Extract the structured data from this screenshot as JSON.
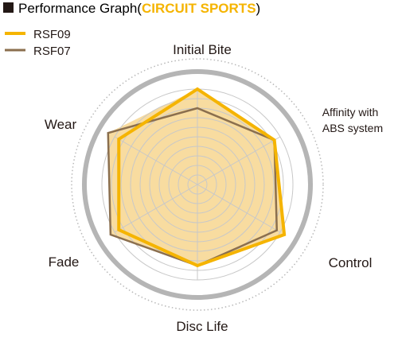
{
  "chart_data": {
    "type": "radar",
    "title": {
      "prefix": "Performance Graph",
      "open_paren": "(",
      "accent": "CIRCUIT SPORTS",
      "close_paren": ")"
    },
    "axes": [
      "Initial Bite",
      "Affinity with ABS system",
      "Control",
      "Disc Life",
      "Fade",
      "Wear"
    ],
    "axis_label_lines": {
      "affinity_line1": "Affinity with",
      "affinity_line2": "ABS system"
    },
    "range": [
      0,
      10
    ],
    "rings": 10,
    "grid": true,
    "legend_position": "top-left",
    "series": [
      {
        "name": "RSF09",
        "color": "#f5b400",
        "values": [
          10,
          9.3,
          10.5,
          8.5,
          9.5,
          9.5
        ]
      },
      {
        "name": "RSF07",
        "color": "#8b6f4e",
        "values": [
          8,
          9.3,
          9.6,
          8.5,
          10.5,
          10.8
        ]
      }
    ],
    "colors": {
      "fill": "#f8dca0",
      "grid": "#c8c8c8",
      "outer_ring": "#b5b5b5",
      "dotted_ring": "#b8b8b8",
      "accent": "#f5b400"
    }
  }
}
